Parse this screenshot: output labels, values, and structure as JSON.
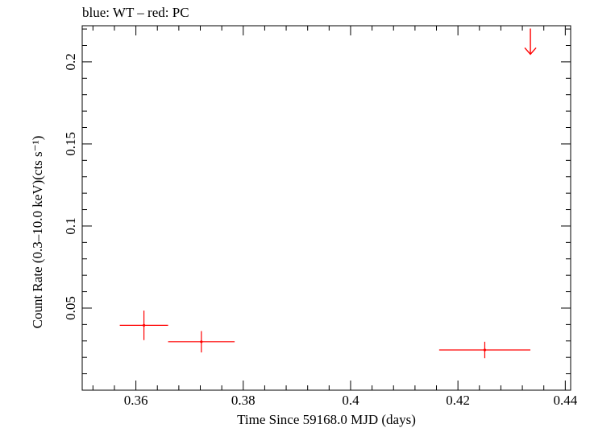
{
  "chart_data": {
    "type": "scatter",
    "title": "blue: WT – red: PC",
    "xlabel": "Time Since 59168.0 MJD (days)",
    "ylabel": "Count Rate (0.3–10.0 keV)(cts s⁻¹)",
    "xlim": [
      0.35,
      0.441
    ],
    "ylim": [
      0.0,
      0.222
    ],
    "xticks": [
      0.36,
      0.38,
      0.4,
      0.42,
      0.44
    ],
    "xtick_labels": [
      "0.36",
      "0.38",
      "0.4",
      "0.42",
      "0.44"
    ],
    "yticks": [
      0.05,
      0.1,
      0.15,
      0.2
    ],
    "ytick_labels": [
      "0.05",
      "0.1",
      "0.15",
      "0.2"
    ],
    "grid": false,
    "series": [
      {
        "color": "#ff0000",
        "points": [
          {
            "x": 0.3615,
            "y": 0.0395,
            "xerr_low": 0.0045,
            "xerr_high": 0.0045,
            "yerr_low": 0.009,
            "yerr_high": 0.009
          },
          {
            "x": 0.3722,
            "y": 0.0295,
            "xerr_low": 0.0062,
            "xerr_high": 0.0062,
            "yerr_low": 0.0065,
            "yerr_high": 0.0065
          },
          {
            "x": 0.425,
            "y": 0.0245,
            "xerr_low": 0.0085,
            "xerr_high": 0.0085,
            "yerr_low": 0.005,
            "yerr_high": 0.005
          }
        ],
        "upper_limits": [
          {
            "x": 0.4335,
            "y": 0.2105
          }
        ]
      }
    ]
  }
}
